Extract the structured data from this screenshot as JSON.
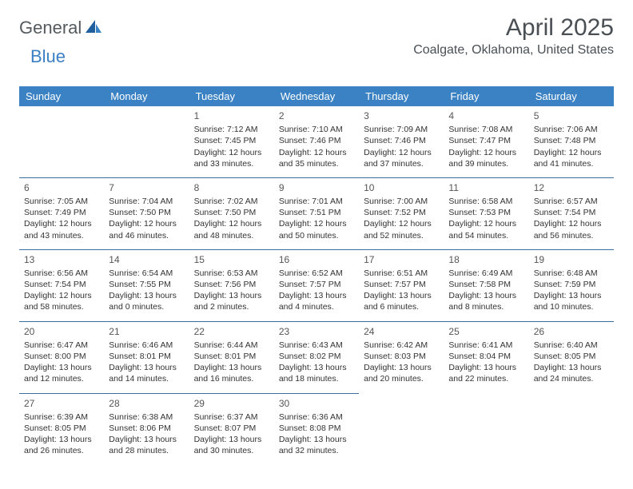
{
  "brand": {
    "part1": "General",
    "part2": "Blue"
  },
  "title": "April 2025",
  "location": "Coalgate, Oklahoma, United States",
  "header_bg": "#3b82c4",
  "header_fg": "#ffffff",
  "row_border": "#3b6fa0",
  "columns": [
    "Sunday",
    "Monday",
    "Tuesday",
    "Wednesday",
    "Thursday",
    "Friday",
    "Saturday"
  ],
  "weeks": [
    [
      null,
      null,
      {
        "n": "1",
        "sr": "Sunrise: 7:12 AM",
        "ss": "Sunset: 7:45 PM",
        "dl": "Daylight: 12 hours and 33 minutes."
      },
      {
        "n": "2",
        "sr": "Sunrise: 7:10 AM",
        "ss": "Sunset: 7:46 PM",
        "dl": "Daylight: 12 hours and 35 minutes."
      },
      {
        "n": "3",
        "sr": "Sunrise: 7:09 AM",
        "ss": "Sunset: 7:46 PM",
        "dl": "Daylight: 12 hours and 37 minutes."
      },
      {
        "n": "4",
        "sr": "Sunrise: 7:08 AM",
        "ss": "Sunset: 7:47 PM",
        "dl": "Daylight: 12 hours and 39 minutes."
      },
      {
        "n": "5",
        "sr": "Sunrise: 7:06 AM",
        "ss": "Sunset: 7:48 PM",
        "dl": "Daylight: 12 hours and 41 minutes."
      }
    ],
    [
      {
        "n": "6",
        "sr": "Sunrise: 7:05 AM",
        "ss": "Sunset: 7:49 PM",
        "dl": "Daylight: 12 hours and 43 minutes."
      },
      {
        "n": "7",
        "sr": "Sunrise: 7:04 AM",
        "ss": "Sunset: 7:50 PM",
        "dl": "Daylight: 12 hours and 46 minutes."
      },
      {
        "n": "8",
        "sr": "Sunrise: 7:02 AM",
        "ss": "Sunset: 7:50 PM",
        "dl": "Daylight: 12 hours and 48 minutes."
      },
      {
        "n": "9",
        "sr": "Sunrise: 7:01 AM",
        "ss": "Sunset: 7:51 PM",
        "dl": "Daylight: 12 hours and 50 minutes."
      },
      {
        "n": "10",
        "sr": "Sunrise: 7:00 AM",
        "ss": "Sunset: 7:52 PM",
        "dl": "Daylight: 12 hours and 52 minutes."
      },
      {
        "n": "11",
        "sr": "Sunrise: 6:58 AM",
        "ss": "Sunset: 7:53 PM",
        "dl": "Daylight: 12 hours and 54 minutes."
      },
      {
        "n": "12",
        "sr": "Sunrise: 6:57 AM",
        "ss": "Sunset: 7:54 PM",
        "dl": "Daylight: 12 hours and 56 minutes."
      }
    ],
    [
      {
        "n": "13",
        "sr": "Sunrise: 6:56 AM",
        "ss": "Sunset: 7:54 PM",
        "dl": "Daylight: 12 hours and 58 minutes."
      },
      {
        "n": "14",
        "sr": "Sunrise: 6:54 AM",
        "ss": "Sunset: 7:55 PM",
        "dl": "Daylight: 13 hours and 0 minutes."
      },
      {
        "n": "15",
        "sr": "Sunrise: 6:53 AM",
        "ss": "Sunset: 7:56 PM",
        "dl": "Daylight: 13 hours and 2 minutes."
      },
      {
        "n": "16",
        "sr": "Sunrise: 6:52 AM",
        "ss": "Sunset: 7:57 PM",
        "dl": "Daylight: 13 hours and 4 minutes."
      },
      {
        "n": "17",
        "sr": "Sunrise: 6:51 AM",
        "ss": "Sunset: 7:57 PM",
        "dl": "Daylight: 13 hours and 6 minutes."
      },
      {
        "n": "18",
        "sr": "Sunrise: 6:49 AM",
        "ss": "Sunset: 7:58 PM",
        "dl": "Daylight: 13 hours and 8 minutes."
      },
      {
        "n": "19",
        "sr": "Sunrise: 6:48 AM",
        "ss": "Sunset: 7:59 PM",
        "dl": "Daylight: 13 hours and 10 minutes."
      }
    ],
    [
      {
        "n": "20",
        "sr": "Sunrise: 6:47 AM",
        "ss": "Sunset: 8:00 PM",
        "dl": "Daylight: 13 hours and 12 minutes."
      },
      {
        "n": "21",
        "sr": "Sunrise: 6:46 AM",
        "ss": "Sunset: 8:01 PM",
        "dl": "Daylight: 13 hours and 14 minutes."
      },
      {
        "n": "22",
        "sr": "Sunrise: 6:44 AM",
        "ss": "Sunset: 8:01 PM",
        "dl": "Daylight: 13 hours and 16 minutes."
      },
      {
        "n": "23",
        "sr": "Sunrise: 6:43 AM",
        "ss": "Sunset: 8:02 PM",
        "dl": "Daylight: 13 hours and 18 minutes."
      },
      {
        "n": "24",
        "sr": "Sunrise: 6:42 AM",
        "ss": "Sunset: 8:03 PM",
        "dl": "Daylight: 13 hours and 20 minutes."
      },
      {
        "n": "25",
        "sr": "Sunrise: 6:41 AM",
        "ss": "Sunset: 8:04 PM",
        "dl": "Daylight: 13 hours and 22 minutes."
      },
      {
        "n": "26",
        "sr": "Sunrise: 6:40 AM",
        "ss": "Sunset: 8:05 PM",
        "dl": "Daylight: 13 hours and 24 minutes."
      }
    ],
    [
      {
        "n": "27",
        "sr": "Sunrise: 6:39 AM",
        "ss": "Sunset: 8:05 PM",
        "dl": "Daylight: 13 hours and 26 minutes."
      },
      {
        "n": "28",
        "sr": "Sunrise: 6:38 AM",
        "ss": "Sunset: 8:06 PM",
        "dl": "Daylight: 13 hours and 28 minutes."
      },
      {
        "n": "29",
        "sr": "Sunrise: 6:37 AM",
        "ss": "Sunset: 8:07 PM",
        "dl": "Daylight: 13 hours and 30 minutes."
      },
      {
        "n": "30",
        "sr": "Sunrise: 6:36 AM",
        "ss": "Sunset: 8:08 PM",
        "dl": "Daylight: 13 hours and 32 minutes."
      },
      null,
      null,
      null
    ]
  ]
}
